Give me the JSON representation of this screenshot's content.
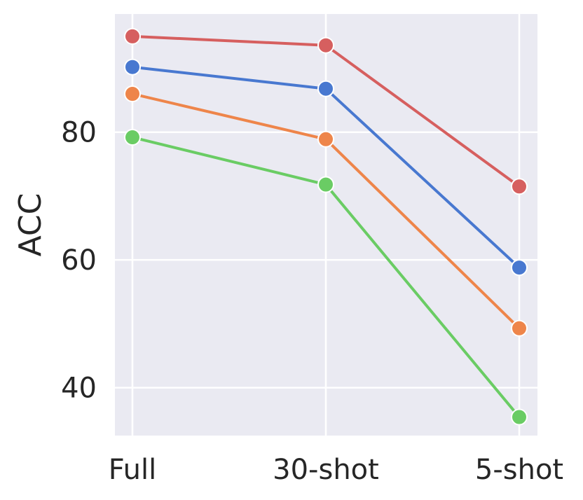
{
  "chart_data": {
    "type": "line",
    "title": "",
    "xlabel": "",
    "ylabel": "ACC",
    "categories": [
      "Full",
      "30-shot",
      "5-shot"
    ],
    "ylim": [
      32.5,
      98.5
    ],
    "yticks": [
      40,
      60,
      80
    ],
    "grid": true,
    "legend": "none",
    "series": [
      {
        "color": "#d65f5f",
        "values": [
          95.0,
          93.6,
          71.5
        ]
      },
      {
        "color": "#4878d0",
        "values": [
          90.2,
          86.8,
          58.8
        ]
      },
      {
        "color": "#ee854a",
        "values": [
          86.0,
          78.9,
          49.3
        ]
      },
      {
        "color": "#6acc64",
        "values": [
          79.2,
          71.8,
          35.4
        ]
      }
    ],
    "background": "#eaeaf2",
    "grid_color": "#ffffff"
  }
}
